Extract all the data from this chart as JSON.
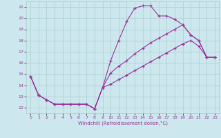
{
  "xlabel": "Windchill (Refroidissement éolien,°C)",
  "bg_color": "#cce8ee",
  "line_color": "#993399",
  "grid_color": "#aacccc",
  "xlim": [
    -0.5,
    23.5
  ],
  "ylim": [
    11.5,
    21.5
  ],
  "xticks": [
    0,
    1,
    2,
    3,
    4,
    5,
    6,
    7,
    8,
    9,
    10,
    11,
    12,
    13,
    14,
    15,
    16,
    17,
    18,
    19,
    20,
    21,
    22,
    23
  ],
  "yticks": [
    12,
    13,
    14,
    15,
    16,
    17,
    18,
    19,
    20,
    21
  ],
  "curve1_x": [
    0,
    1,
    2,
    3,
    4,
    5,
    6,
    7,
    8,
    9,
    10,
    11,
    12,
    13,
    14,
    15,
    16,
    17,
    18,
    19,
    20,
    21,
    22,
    23
  ],
  "curve1_y": [
    14.8,
    13.1,
    12.7,
    12.3,
    12.3,
    12.3,
    12.3,
    12.3,
    11.9,
    13.8,
    16.2,
    18.0,
    19.7,
    20.9,
    21.1,
    21.1,
    20.2,
    20.2,
    19.9,
    19.4,
    18.5,
    18.0,
    16.5,
    16.5
  ],
  "curve2_x": [
    0,
    1,
    2,
    3,
    4,
    5,
    6,
    7,
    8,
    9,
    10,
    11,
    12,
    13,
    14,
    15,
    16,
    17,
    18,
    19,
    20,
    21,
    22,
    23
  ],
  "curve2_y": [
    14.8,
    13.1,
    12.7,
    12.3,
    12.3,
    12.3,
    12.3,
    12.3,
    11.9,
    13.8,
    15.1,
    15.7,
    16.2,
    16.8,
    17.3,
    17.8,
    18.2,
    18.6,
    19.0,
    19.4,
    18.5,
    18.0,
    16.5,
    16.5
  ],
  "curve3_x": [
    0,
    1,
    2,
    3,
    4,
    5,
    6,
    7,
    8,
    9,
    10,
    11,
    12,
    13,
    14,
    15,
    16,
    17,
    18,
    19,
    20,
    21,
    22,
    23
  ],
  "curve3_y": [
    14.8,
    13.1,
    12.7,
    12.3,
    12.3,
    12.3,
    12.3,
    12.3,
    11.9,
    13.8,
    14.1,
    14.5,
    14.9,
    15.3,
    15.7,
    16.1,
    16.5,
    16.9,
    17.3,
    17.7,
    18.0,
    17.5,
    16.5,
    16.5
  ]
}
